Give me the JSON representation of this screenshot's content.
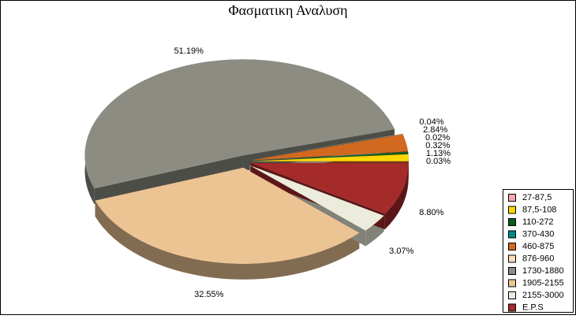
{
  "chart_data": {
    "type": "pie",
    "title": "Φασματικη Αναλυση",
    "categories": [
      "27-87,5",
      "87,5-108",
      "110-272",
      "370-430",
      "460-875",
      "876-960",
      "1730-1880",
      "1905-2155",
      "2155-3000",
      "E.P.S"
    ],
    "values": [
      0.03,
      1.13,
      0.32,
      0.02,
      2.84,
      0.04,
      51.19,
      32.55,
      3.07,
      8.8
    ],
    "value_labels": [
      "0.03%",
      "1.13%",
      "0.32%",
      "0.02%",
      "2.84%",
      "0.04%",
      "51.19%",
      "32.55%",
      "3.07%",
      "8.80%"
    ],
    "colors": [
      "#f2a7ae",
      "#ffd700",
      "#0b5e1e",
      "#00898a",
      "#d2691e",
      "#ffdcb9",
      "#8c8c82",
      "#ecc493",
      "#ececdc",
      "#a52a2a"
    ],
    "legend": "bottom-right"
  }
}
